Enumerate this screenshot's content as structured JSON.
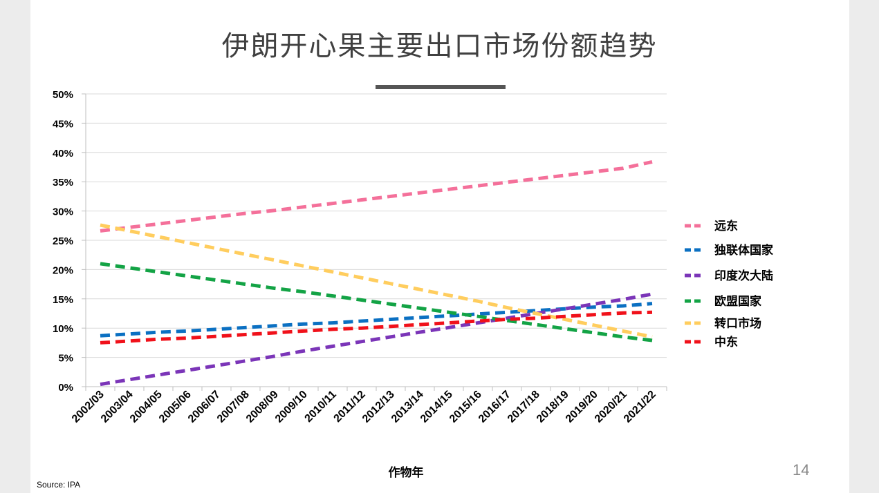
{
  "slide": {
    "title": "伊朗开心果主要出口市场份额趋势",
    "page_number": "14",
    "source": "Source:  IPA"
  },
  "chart_data": {
    "type": "line",
    "title": "",
    "xlabel": "作物年",
    "ylabel": "",
    "ylim": [
      0,
      50
    ],
    "y_ticks": [
      "0%",
      "5%",
      "10%",
      "15%",
      "20%",
      "25%",
      "30%",
      "35%",
      "40%",
      "45%",
      "50%"
    ],
    "grid": true,
    "legend_position": "right",
    "categories": [
      "2002/03",
      "2003/04",
      "2004/05",
      "2005/06",
      "2006/07",
      "2007/08",
      "2008/09",
      "2009/10",
      "2010/11",
      "2011/12",
      "2012/13",
      "2013/14",
      "2014/15",
      "2015/16",
      "2016/17",
      "2017/18",
      "2018/19",
      "2019/20",
      "2020/21",
      "2021/22"
    ],
    "series": [
      {
        "name": "远东",
        "color": "#f4709a",
        "values": [
          26.6,
          27.2,
          27.8,
          28.4,
          29.0,
          29.6,
          30.1,
          30.7,
          31.3,
          31.9,
          32.5,
          33.1,
          33.7,
          34.3,
          34.9,
          35.5,
          36.1,
          36.7,
          37.3,
          38.4
        ]
      },
      {
        "name": "独联体国家",
        "color": "#0b70c2",
        "values": [
          8.7,
          9.0,
          9.3,
          9.5,
          9.8,
          10.1,
          10.4,
          10.7,
          10.9,
          11.2,
          11.5,
          11.8,
          12.1,
          12.4,
          12.7,
          13.0,
          13.3,
          13.6,
          13.8,
          14.2
        ]
      },
      {
        "name": "印度次大陆",
        "color": "#7b35b8",
        "values": [
          0.4,
          1.2,
          2.0,
          2.8,
          3.6,
          4.4,
          5.2,
          6.1,
          6.9,
          7.7,
          8.5,
          9.3,
          10.1,
          10.9,
          11.7,
          12.5,
          13.3,
          14.1,
          14.9,
          15.8
        ]
      },
      {
        "name": "欧盟国家",
        "color": "#13a345",
        "values": [
          21.0,
          20.3,
          19.6,
          18.9,
          18.2,
          17.5,
          16.8,
          16.2,
          15.5,
          14.8,
          14.1,
          13.4,
          12.7,
          12.0,
          11.3,
          10.6,
          9.9,
          9.2,
          8.5,
          7.9
        ]
      },
      {
        "name": "转口市场",
        "color": "#ffcd5e",
        "values": [
          27.6,
          26.6,
          25.6,
          24.6,
          23.6,
          22.6,
          21.6,
          20.6,
          19.6,
          18.6,
          17.6,
          16.6,
          15.6,
          14.6,
          13.5,
          12.5,
          11.5,
          10.5,
          9.5,
          8.5
        ]
      },
      {
        "name": "中东",
        "color": "#f0111a",
        "values": [
          7.5,
          7.8,
          8.1,
          8.3,
          8.6,
          8.9,
          9.2,
          9.5,
          9.8,
          10.0,
          10.3,
          10.6,
          10.9,
          11.2,
          11.5,
          11.7,
          12.0,
          12.3,
          12.6,
          12.7
        ]
      }
    ]
  }
}
